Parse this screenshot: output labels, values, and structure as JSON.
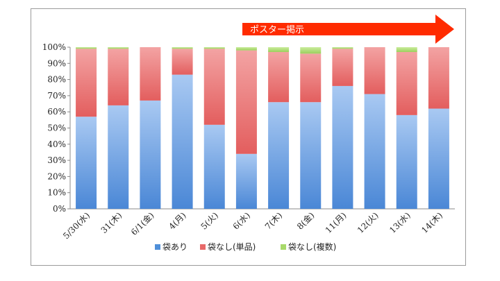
{
  "chart_data": {
    "type": "bar",
    "stacked": true,
    "percent_stacked": true,
    "categories": [
      "5/30(水)",
      "31(木)",
      "6/1(金)",
      "4(月)",
      "5(火)",
      "6(水)",
      "7(木)",
      "8(金)",
      "11(月)",
      "12(火)",
      "13(水)",
      "14(木)"
    ],
    "series": [
      {
        "name": "袋あり",
        "color": "#4f8fd9",
        "values": [
          57,
          64,
          67,
          83,
          52,
          34,
          66,
          66,
          76,
          71,
          58,
          62
        ]
      },
      {
        "name": "袋なし(単品)",
        "color": "#e86969",
        "values": [
          42,
          35,
          33,
          16,
          47,
          64,
          31,
          30,
          23,
          29,
          39,
          38
        ]
      },
      {
        "name": "袋なし(複数)",
        "color": "#a8d96a",
        "values": [
          1,
          1,
          0,
          1,
          1,
          2,
          3,
          4,
          1,
          0,
          3,
          0
        ]
      }
    ],
    "ylim": [
      0,
      100
    ],
    "yticks": [
      "0%",
      "10%",
      "20%",
      "30%",
      "40%",
      "50%",
      "60%",
      "70%",
      "80%",
      "90%",
      "100%"
    ],
    "grid": false,
    "legend_position": "bottom",
    "annotation": {
      "text": "ポスター掲示",
      "color": "#ff2b00"
    }
  }
}
